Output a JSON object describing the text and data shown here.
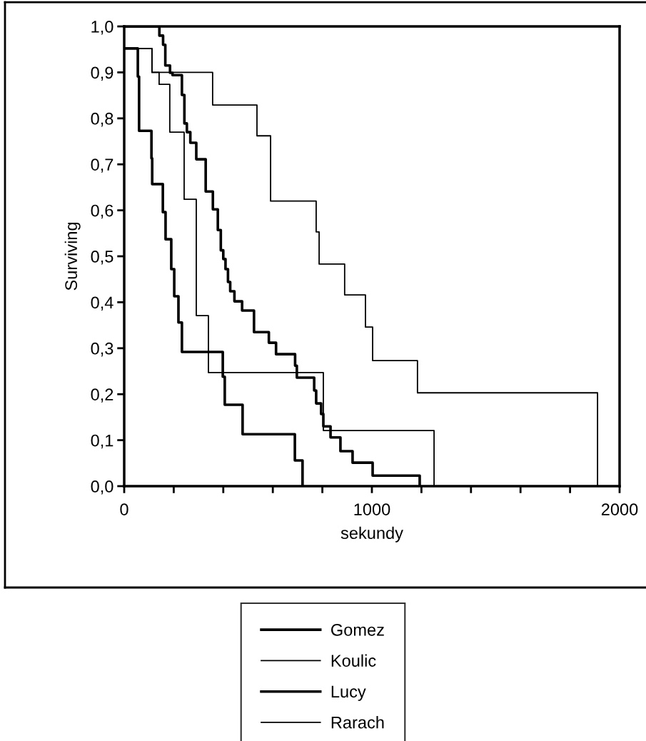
{
  "chart_data": {
    "type": "step",
    "xlabel": "sekundy",
    "ylabel": "Surviving",
    "xlim": [
      0,
      2000
    ],
    "ylim": [
      0,
      1.0
    ],
    "xticks": [
      0,
      {
        "value": 200,
        "label": null
      },
      {
        "value": 400,
        "label": null
      },
      {
        "value": 600,
        "label": null
      },
      {
        "value": 800,
        "label": null
      },
      1000,
      {
        "value": 1200,
        "label": null
      },
      {
        "value": 1400,
        "label": null
      },
      {
        "value": 1600,
        "label": null
      },
      {
        "value": 1800,
        "label": null
      },
      2000
    ],
    "yticks": [
      {
        "value": 0,
        "label": "0,0"
      },
      {
        "value": 0.1,
        "label": "0,1"
      },
      {
        "value": 0.2,
        "label": "0,2"
      },
      {
        "value": 0.3,
        "label": "0,3"
      },
      {
        "value": 0.4,
        "label": "0,4"
      },
      {
        "value": 0.5,
        "label": "0,5"
      },
      {
        "value": 0.6,
        "label": "0,6"
      },
      {
        "value": 0.7,
        "label": "0,7"
      },
      {
        "value": 0.8,
        "label": "0,8"
      },
      {
        "value": 0.9,
        "label": "0,9"
      },
      {
        "value": 1.0,
        "label": "1,0"
      }
    ],
    "grid": false,
    "legend": "bottom",
    "marker": "none",
    "line_style": "solid",
    "series": [
      {
        "name": "Gomez",
        "color": "#000000",
        "x": [
          0,
          55,
          60,
          110,
          113,
          156,
          167,
          190,
          202,
          219,
          233,
          398,
          406,
          478,
          689,
          720
        ],
        "values": [
          0.952,
          0.891,
          0.773,
          0.713,
          0.657,
          0.596,
          0.537,
          0.472,
          0.413,
          0.356,
          0.292,
          0.238,
          0.177,
          0.113,
          0.056,
          0
        ]
      },
      {
        "name": "Koulic",
        "color": "#000000",
        "x": [
          0,
          112,
          357,
          536,
          591,
          775,
          787,
          890,
          974,
          1003,
          1184,
          1911
        ],
        "values": [
          0.952,
          0.9,
          0.829,
          0.762,
          0.62,
          0.553,
          0.483,
          0.416,
          0.346,
          0.273,
          0.203,
          0
        ]
      },
      {
        "name": "Lucy",
        "color": "#000000",
        "x": [
          0,
          142,
          157,
          166,
          185,
          195,
          233,
          243,
          253,
          267,
          291,
          329,
          358,
          378,
          390,
          400,
          409,
          419,
          428,
          445,
          476,
          524,
          584,
          613,
          690,
          697,
          767,
          775,
          795,
          804,
          833,
          873,
          922,
          1003,
          1193
        ],
        "values": [
          1.0,
          0.98,
          0.96,
          0.915,
          0.899,
          0.894,
          0.851,
          0.789,
          0.77,
          0.747,
          0.711,
          0.641,
          0.602,
          0.557,
          0.513,
          0.494,
          0.472,
          0.444,
          0.424,
          0.402,
          0.382,
          0.335,
          0.312,
          0.287,
          0.262,
          0.236,
          0.208,
          0.18,
          0.157,
          0.13,
          0.106,
          0.076,
          0.051,
          0.023,
          0
        ]
      },
      {
        "name": "Rarach",
        "color": "#000000",
        "x": [
          0,
          112,
          141,
          184,
          242,
          291,
          340,
          804,
          1251
        ],
        "values": [
          0.952,
          0.9,
          0.874,
          0.77,
          0.624,
          0.371,
          0.247,
          0.121,
          0
        ]
      }
    ]
  }
}
